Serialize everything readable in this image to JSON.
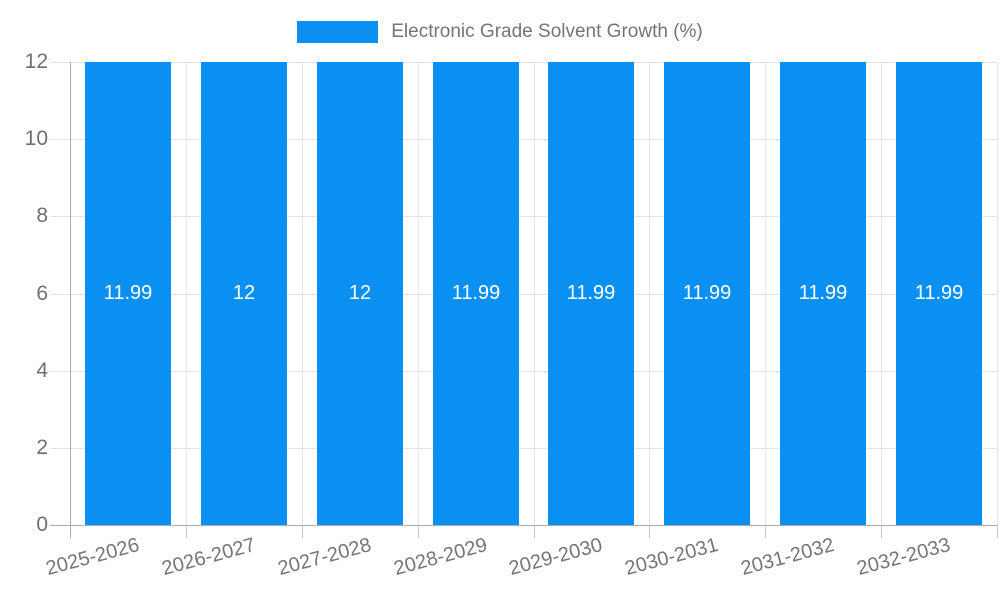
{
  "legend": {
    "label": "Electronic Grade Solvent Growth (%)"
  },
  "chart_data": {
    "type": "bar",
    "title": "",
    "xlabel": "",
    "ylabel": "",
    "legend_entries": [
      "Electronic Grade Solvent Growth (%)"
    ],
    "legend_position": "top-center",
    "categories": [
      "2025-2026",
      "2026-2027",
      "2027-2028",
      "2028-2029",
      "2029-2030",
      "2030-2031",
      "2031-2032",
      "2032-2033"
    ],
    "values": [
      11.99,
      12,
      12,
      11.99,
      11.99,
      11.99,
      11.99,
      11.99
    ],
    "data_labels": [
      "11.99",
      "12",
      "12",
      "11.99",
      "11.99",
      "11.99",
      "11.99",
      "11.99"
    ],
    "ylim": [
      0,
      12
    ],
    "yticks": [
      0,
      2,
      4,
      6,
      8,
      10,
      12
    ],
    "grid": true
  },
  "colors": {
    "bar": "#0a8ff2",
    "data_label": "#ffffff",
    "axis_text": "#757575",
    "y_tick_text": "#6f6f6f",
    "gridline": "#e2e2e2",
    "axis_line": "#ababab",
    "legend_text": "#757575"
  }
}
